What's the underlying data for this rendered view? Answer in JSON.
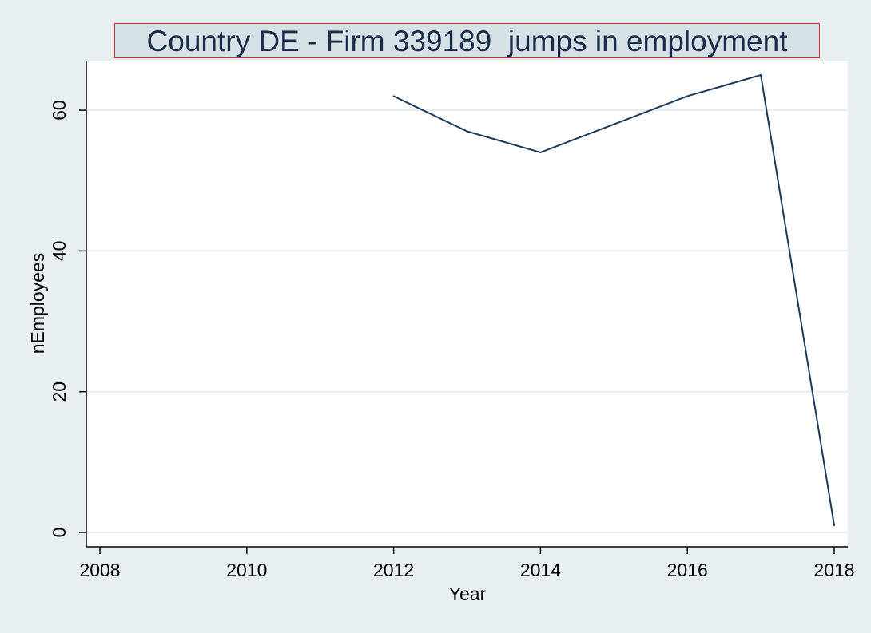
{
  "chart_data": {
    "type": "line",
    "title": "Country DE - Firm 339189  jumps in employment",
    "xlabel": "Year",
    "ylabel": "nEmployees",
    "x_ticks": [
      2008,
      2010,
      2012,
      2014,
      2016,
      2018
    ],
    "y_ticks": [
      0,
      20,
      40,
      60
    ],
    "xlim": [
      2008,
      2018
    ],
    "ylim": [
      0,
      65
    ],
    "grid": "horizontal",
    "legend": "none",
    "series": [
      {
        "x": [
          2012,
          2013,
          2014,
          2015,
          2016,
          2017,
          2018
        ],
        "y": [
          62,
          57,
          54,
          58,
          62,
          65,
          1
        ]
      }
    ],
    "colors": {
      "background": "#e8eff1",
      "plot_area": "#ffffff",
      "line": "#1a3a5c",
      "grid": "#e6edf0",
      "title_box": "#d6e1e6",
      "title_border": "#e8232a",
      "title_text": "#1a2b4a"
    }
  }
}
